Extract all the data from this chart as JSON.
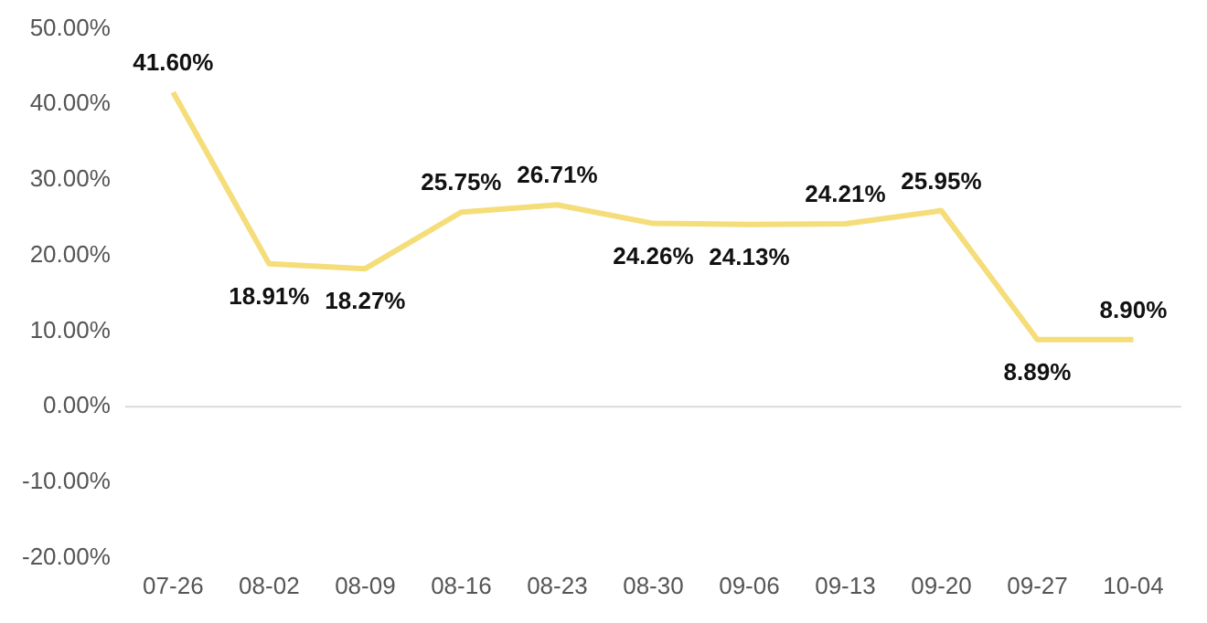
{
  "chart_data": {
    "type": "line",
    "categories": [
      "07-26",
      "08-02",
      "08-09",
      "08-16",
      "08-23",
      "08-30",
      "09-06",
      "09-13",
      "09-20",
      "09-27",
      "10-04"
    ],
    "series": [
      {
        "color": "#f5dd7a",
        "values": [
          41.6,
          18.91,
          18.27,
          25.75,
          26.71,
          24.26,
          24.13,
          24.21,
          25.95,
          8.89,
          8.9
        ],
        "value_labels": [
          "41.60%",
          "18.91%",
          "18.27%",
          "25.75%",
          "26.71%",
          "24.26%",
          "24.13%",
          "24.21%",
          "25.95%",
          "8.89%",
          "8.90%"
        ]
      }
    ],
    "ylim": [
      -20,
      50
    ],
    "yticks": [
      {
        "value": -20,
        "label": "-20.00%"
      },
      {
        "value": -10,
        "label": "-10.00%"
      },
      {
        "value": 0,
        "label": "0.00%"
      },
      {
        "value": 10,
        "label": "10.00%"
      },
      {
        "value": 20,
        "label": "20.00%"
      },
      {
        "value": 30,
        "label": "30.00%"
      },
      {
        "value": 40,
        "label": "40.00%"
      },
      {
        "value": 50,
        "label": "50.00%"
      }
    ],
    "ref_lines": [
      {
        "axis": "y",
        "value": 0,
        "color": "#d9d9d9"
      }
    ],
    "grid": false,
    "legend": false,
    "marker": "none",
    "line_style": "solid"
  }
}
